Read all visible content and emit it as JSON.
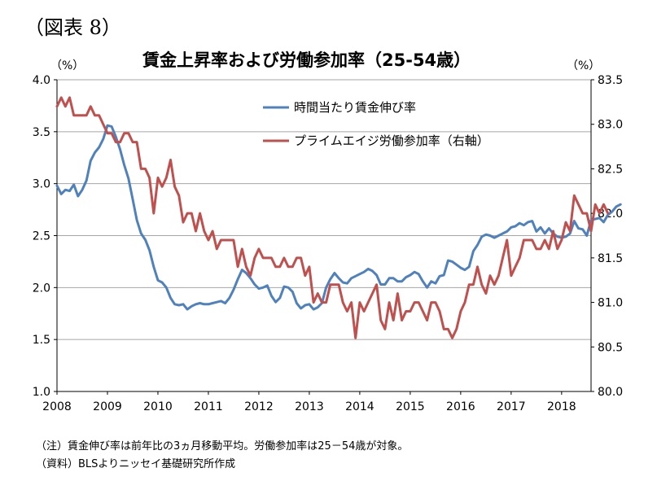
{
  "figure_label": "（図表 8）",
  "unit_left": "（%）",
  "unit_right": "（%）",
  "notes": [
    "（注）賃金伸び率は前年比の3ヵ月移動平均。労働参加率は25－54歳が対象。",
    "（資料）BLSよりニッセイ基礎研究所作成"
  ],
  "colors": {
    "wage": "#4f81bd",
    "lfpr": "#c0504d",
    "grid": "#a6a6a6",
    "axis": "#000000"
  },
  "chart_data": {
    "type": "line",
    "title": "賃金上昇率および労働参加率（25-54歳）",
    "x_ticks": [
      "2008",
      "2009",
      "2010",
      "2011",
      "2012",
      "2013",
      "2014",
      "2015",
      "2016",
      "2017",
      "2018"
    ],
    "xlim": [
      "2008-01",
      "2018-08"
    ],
    "y_left": {
      "lim": [
        1.0,
        4.0
      ],
      "ticks": [
        "1.0",
        "1.5",
        "2.0",
        "2.5",
        "3.0",
        "3.5",
        "4.0"
      ]
    },
    "y_right": {
      "lim": [
        80.0,
        83.5
      ],
      "ticks": [
        "80.0",
        "80.5",
        "81.0",
        "81.5",
        "82.0",
        "82.5",
        "83.0",
        "83.5"
      ]
    },
    "grid": "horizontal",
    "legend_position": "top-center",
    "series": [
      {
        "name": "時間当たり賃金伸び率",
        "axis": "left",
        "color": "#4f81bd",
        "start": "2008-01",
        "values": [
          2.98,
          2.9,
          2.94,
          2.93,
          2.99,
          2.88,
          2.94,
          3.03,
          3.22,
          3.3,
          3.35,
          3.43,
          3.56,
          3.55,
          3.45,
          3.33,
          3.18,
          3.05,
          2.85,
          2.65,
          2.52,
          2.46,
          2.36,
          2.2,
          2.07,
          2.05,
          2.0,
          1.9,
          1.84,
          1.83,
          1.84,
          1.79,
          1.82,
          1.84,
          1.85,
          1.84,
          1.84,
          1.85,
          1.86,
          1.87,
          1.85,
          1.9,
          1.98,
          2.08,
          2.17,
          2.14,
          2.09,
          2.03,
          1.99,
          2.0,
          2.02,
          1.92,
          1.86,
          1.9,
          2.01,
          2.0,
          1.96,
          1.85,
          1.8,
          1.83,
          1.84,
          1.79,
          1.81,
          1.85,
          2.0,
          2.08,
          2.14,
          2.09,
          2.05,
          2.04,
          2.09,
          2.11,
          2.13,
          2.15,
          2.18,
          2.16,
          2.12,
          2.03,
          2.03,
          2.09,
          2.09,
          2.06,
          2.06,
          2.1,
          2.12,
          2.15,
          2.13,
          2.06,
          2.0,
          2.06,
          2.04,
          2.11,
          2.12,
          2.26,
          2.25,
          2.22,
          2.19,
          2.17,
          2.2,
          2.35,
          2.41,
          2.49,
          2.51,
          2.5,
          2.48,
          2.5,
          2.52,
          2.54,
          2.58,
          2.59,
          2.62,
          2.6,
          2.63,
          2.64,
          2.54,
          2.58,
          2.52,
          2.57,
          2.52,
          2.49,
          2.48,
          2.49,
          2.52,
          2.64,
          2.57,
          2.56,
          2.5,
          2.65,
          2.66,
          2.67,
          2.63,
          2.7,
          2.73,
          2.78,
          2.8
        ]
      },
      {
        "name": "プライムエイジ労働参加率（右軸）",
        "axis": "right",
        "color": "#c0504d",
        "start": "2008-01",
        "values": [
          83.2,
          83.3,
          83.2,
          83.3,
          83.1,
          83.1,
          83.1,
          83.1,
          83.2,
          83.1,
          83.1,
          83.0,
          82.9,
          82.9,
          82.8,
          82.8,
          82.9,
          82.9,
          82.8,
          82.8,
          82.5,
          82.5,
          82.4,
          82.0,
          82.4,
          82.3,
          82.4,
          82.6,
          82.3,
          82.2,
          81.9,
          82.0,
          82.0,
          81.8,
          82.0,
          81.8,
          81.7,
          81.8,
          81.6,
          81.7,
          81.7,
          81.7,
          81.7,
          81.4,
          81.6,
          81.4,
          81.3,
          81.5,
          81.6,
          81.5,
          81.5,
          81.5,
          81.4,
          81.4,
          81.5,
          81.4,
          81.4,
          81.5,
          81.5,
          81.3,
          81.4,
          81.0,
          81.1,
          81.0,
          81.0,
          81.2,
          81.2,
          81.2,
          81.0,
          80.9,
          81.0,
          80.6,
          81.0,
          80.9,
          81.0,
          81.1,
          81.2,
          80.8,
          80.7,
          81.0,
          80.8,
          81.1,
          80.8,
          80.9,
          80.9,
          81.0,
          81.0,
          80.9,
          80.8,
          81.0,
          81.0,
          80.9,
          80.7,
          80.7,
          80.6,
          80.7,
          80.9,
          81.0,
          81.2,
          81.2,
          81.4,
          81.2,
          81.1,
          81.3,
          81.2,
          81.3,
          81.5,
          81.7,
          81.3,
          81.4,
          81.5,
          81.7,
          81.7,
          81.7,
          81.6,
          81.6,
          81.7,
          81.6,
          81.8,
          81.6,
          81.7,
          81.9,
          81.8,
          82.2,
          82.1,
          82.0,
          82.0,
          81.8,
          82.1,
          82.0,
          82.1,
          82.0
        ]
      }
    ]
  }
}
